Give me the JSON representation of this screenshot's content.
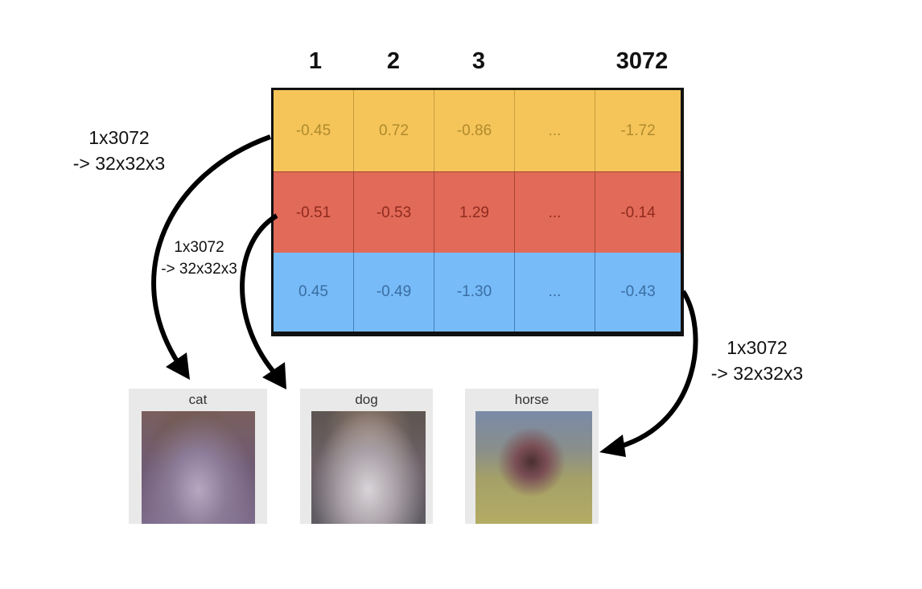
{
  "columns": [
    "1",
    "2",
    "3",
    "3072"
  ],
  "rows": [
    {
      "color": "#f5c55a",
      "values": [
        "-0.45",
        "0.72",
        "-0.86",
        "...",
        "-1.72"
      ]
    },
    {
      "color": "#e26a58",
      "values": [
        "-0.51",
        "-0.53",
        "1.29",
        "...",
        "-0.14"
      ]
    },
    {
      "color": "#77bbf8",
      "values": [
        "0.45",
        "-0.49",
        "-1.30",
        "...",
        "-0.43"
      ]
    }
  ],
  "annotations": [
    {
      "line1": "1x3072",
      "line2": "-> 32x32x3"
    },
    {
      "line1": "1x3072",
      "line2": "-> 32x32x3"
    },
    {
      "line1": "1x3072",
      "line2": "-> 32x32x3"
    }
  ],
  "images": [
    {
      "label": "cat"
    },
    {
      "label": "dog"
    },
    {
      "label": "horse"
    }
  ]
}
